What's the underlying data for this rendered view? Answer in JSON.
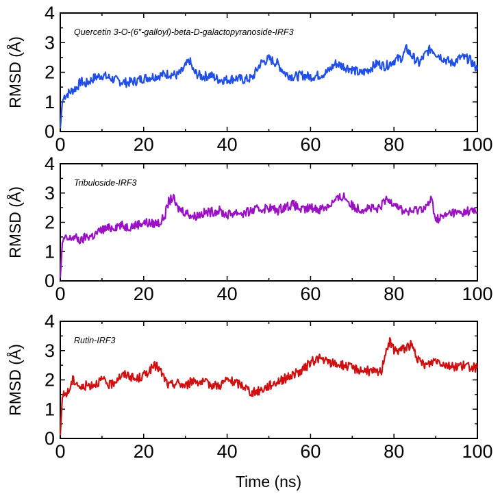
{
  "figure": {
    "xlabel": "Time (ns)"
  },
  "chart_data": [
    {
      "type": "line",
      "title": "Quercetin 3-O-(6″-galloyl)-beta-D-galactopyranoside-IRF3",
      "xlabel": "",
      "ylabel": "RMSD (Å)",
      "xlim": [
        0,
        100
      ],
      "ylim": [
        0,
        4
      ],
      "xticks": [
        0,
        20,
        40,
        60,
        80,
        100
      ],
      "yticks": [
        0,
        1,
        2,
        3,
        4
      ],
      "color": "#1f4fe8",
      "series": [
        {
          "name": "Quercetin 3-O-(6″-galloyl)-beta-D-galactopyranoside-IRF3",
          "x": [
            0,
            0.5,
            1,
            2,
            3,
            4,
            5,
            6,
            8,
            10,
            12,
            14,
            16,
            18,
            20,
            22,
            24,
            26,
            28,
            29,
            30,
            31,
            32,
            34,
            36,
            38,
            40,
            42,
            44,
            46,
            48,
            50,
            52,
            54,
            56,
            58,
            60,
            62,
            64,
            66,
            68,
            70,
            72,
            74,
            76,
            78,
            80,
            82,
            83,
            84,
            86,
            88,
            89,
            90,
            92,
            94,
            96,
            98,
            100
          ],
          "values": [
            0.1,
            1.0,
            1.2,
            1.3,
            1.4,
            1.5,
            1.7,
            1.6,
            1.8,
            1.9,
            1.8,
            1.7,
            1.65,
            1.7,
            1.8,
            1.85,
            1.9,
            1.95,
            1.9,
            2.0,
            2.2,
            2.4,
            2.0,
            1.85,
            1.9,
            1.75,
            1.75,
            1.8,
            1.75,
            1.8,
            2.3,
            2.45,
            2.3,
            1.95,
            1.85,
            1.9,
            1.85,
            1.9,
            2.0,
            2.3,
            2.2,
            2.1,
            1.95,
            2.1,
            2.3,
            2.2,
            2.4,
            2.5,
            2.8,
            2.6,
            2.3,
            2.7,
            2.8,
            2.65,
            2.45,
            2.3,
            2.5,
            2.45,
            2.1
          ]
        }
      ]
    },
    {
      "type": "line",
      "title": "Tribuloside-IRF3",
      "xlabel": "",
      "ylabel": "RMSD (Å)",
      "xlim": [
        0,
        100
      ],
      "ylim": [
        0,
        4
      ],
      "xticks": [
        0,
        20,
        40,
        60,
        80,
        100
      ],
      "yticks": [
        0,
        1,
        2,
        3,
        4
      ],
      "color": "#9b10c4",
      "series": [
        {
          "name": "Tribuloside-IRF3",
          "x": [
            0,
            0.5,
            1,
            2,
            3,
            4,
            5,
            6,
            8,
            10,
            12,
            14,
            16,
            18,
            20,
            22,
            24,
            25,
            26,
            27,
            28,
            30,
            32,
            34,
            36,
            38,
            40,
            42,
            44,
            46,
            48,
            50,
            52,
            54,
            56,
            58,
            60,
            62,
            64,
            66,
            68,
            70,
            72,
            74,
            76,
            78,
            80,
            82,
            84,
            86,
            88,
            89,
            90,
            92,
            94,
            96,
            98,
            100
          ],
          "values": [
            0.1,
            1.3,
            1.45,
            1.4,
            1.5,
            1.45,
            1.35,
            1.5,
            1.55,
            1.75,
            1.8,
            1.9,
            1.85,
            1.9,
            2.0,
            1.95,
            2.0,
            2.2,
            2.7,
            2.85,
            2.5,
            2.35,
            2.2,
            2.3,
            2.35,
            2.4,
            2.25,
            2.35,
            2.3,
            2.4,
            2.45,
            2.5,
            2.4,
            2.55,
            2.6,
            2.4,
            2.5,
            2.45,
            2.55,
            2.75,
            2.9,
            2.55,
            2.45,
            2.5,
            2.4,
            2.75,
            2.7,
            2.4,
            2.35,
            2.45,
            2.55,
            2.8,
            2.1,
            2.2,
            2.35,
            2.3,
            2.4,
            2.35
          ]
        }
      ]
    },
    {
      "type": "line",
      "title": "Rutin-IRF3",
      "xlabel": "Time (ns)",
      "ylabel": "RMSD (Å)",
      "xlim": [
        0,
        100
      ],
      "ylim": [
        0,
        4
      ],
      "xticks": [
        0,
        20,
        40,
        60,
        80,
        100
      ],
      "yticks": [
        0,
        1,
        2,
        3,
        4
      ],
      "color": "#d01010",
      "series": [
        {
          "name": "Rutin-IRF3",
          "x": [
            0,
            0.5,
            1,
            2,
            3,
            4,
            5,
            6,
            8,
            10,
            12,
            14,
            16,
            18,
            20,
            22,
            23,
            24,
            26,
            28,
            30,
            32,
            34,
            36,
            38,
            40,
            42,
            44,
            46,
            48,
            50,
            52,
            54,
            56,
            58,
            60,
            62,
            64,
            66,
            68,
            70,
            72,
            74,
            76,
            77,
            78,
            79,
            80,
            82,
            84,
            85,
            86,
            88,
            90,
            92,
            94,
            96,
            98,
            100
          ],
          "values": [
            0.1,
            1.4,
            1.5,
            1.6,
            2.0,
            1.9,
            1.7,
            1.8,
            1.85,
            2.0,
            1.8,
            2.1,
            2.2,
            2.0,
            2.15,
            2.4,
            2.5,
            2.3,
            1.8,
            1.9,
            1.8,
            2.0,
            1.9,
            1.85,
            1.8,
            2.0,
            1.9,
            1.8,
            1.55,
            1.65,
            1.8,
            1.95,
            2.05,
            2.2,
            2.3,
            2.6,
            2.75,
            2.6,
            2.55,
            2.5,
            2.4,
            2.35,
            2.3,
            2.25,
            2.3,
            3.0,
            3.3,
            3.0,
            3.05,
            3.2,
            2.95,
            2.6,
            2.5,
            2.7,
            2.55,
            2.45,
            2.5,
            2.45,
            2.4
          ]
        }
      ]
    }
  ]
}
